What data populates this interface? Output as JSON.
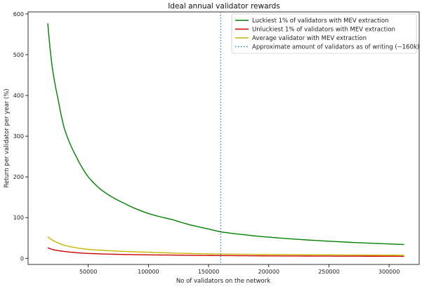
{
  "chart_data": {
    "type": "line",
    "title": "Ideal annual validator rewards",
    "xlabel": "No of validators on the network",
    "ylabel": "Return per validator per year (%)",
    "xlim": [
      0,
      325000
    ],
    "ylim": [
      -15,
      605
    ],
    "x_ticks": [
      50000,
      100000,
      150000,
      200000,
      250000,
      300000
    ],
    "x_tick_labels": [
      "50000",
      "100000",
      "150000",
      "200000",
      "250000",
      "300000"
    ],
    "y_ticks": [
      0,
      100,
      200,
      300,
      400,
      500,
      600
    ],
    "y_tick_labels": [
      "0",
      "100",
      "200",
      "300",
      "400",
      "500",
      "600"
    ],
    "grid": false,
    "legend_position": "top-right",
    "x": [
      16384,
      20000,
      25000,
      30000,
      40000,
      50000,
      60000,
      80000,
      100000,
      120000,
      150000,
      160000,
      200000,
      250000,
      312500
    ],
    "series": [
      {
        "name": "Luckiest 1% of validators with MEV extraction",
        "color": "#008000",
        "values": [
          577,
          470,
          390,
          320,
          250,
          200,
          170,
          135,
          110,
          95,
          72,
          65,
          52,
          42,
          34
        ]
      },
      {
        "name": "Unluckiest 1% of validators with MEV extraction",
        "color": "#cc0000",
        "values": [
          26,
          22,
          19,
          17,
          14,
          12,
          11,
          9.5,
          8.5,
          8,
          7,
          6.8,
          6,
          5.5,
          5
        ]
      },
      {
        "name": "Average validator with MEV extraction",
        "color": "#c8b400",
        "values": [
          53,
          45,
          38,
          32,
          26,
          22,
          20,
          17,
          15,
          13,
          11,
          10.5,
          9.5,
          8.5,
          7.5
        ]
      }
    ],
    "vline": {
      "name": "Approximate amount of validators as of writing (~160k)",
      "x": 160000,
      "color": "#1f77b4",
      "style": "dotted"
    }
  }
}
